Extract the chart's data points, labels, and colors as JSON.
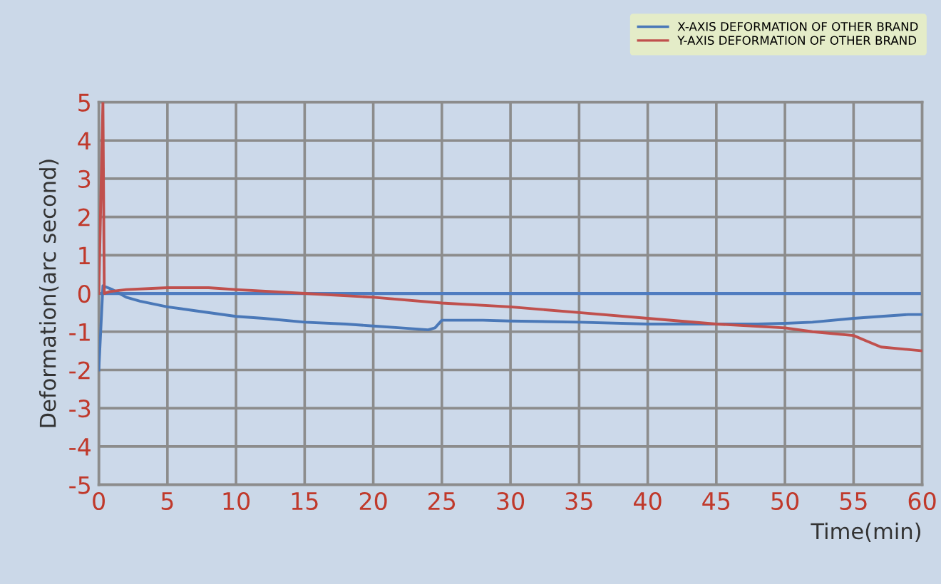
{
  "chart_data": {
    "type": "line",
    "xlabel": "Time(min)",
    "ylabel": "Deformation(arc second)",
    "xlim": [
      0,
      60
    ],
    "ylim": [
      -5,
      5
    ],
    "xticks": [
      0,
      5,
      10,
      15,
      20,
      25,
      30,
      35,
      40,
      45,
      50,
      55,
      60
    ],
    "yticks": [
      -5,
      -4,
      -3,
      -2,
      -1,
      0,
      1,
      2,
      3,
      4,
      5
    ],
    "grid": true,
    "legend": "top right",
    "ref_lines": [
      {
        "axis": "y",
        "value": 0,
        "color": "#4f7cc0"
      }
    ],
    "series": [
      {
        "name": "X-AXIS DEFORMATION OF OTHER BRAND",
        "color": "#4a78b8",
        "x": [
          0,
          0.3,
          1,
          2,
          3,
          5,
          7,
          10,
          12,
          15,
          18,
          20,
          22,
          24,
          24.5,
          25,
          28,
          30,
          35,
          40,
          45,
          48,
          50,
          52,
          55,
          57,
          59,
          60
        ],
        "values": [
          -2,
          0.2,
          0.1,
          -0.1,
          -0.2,
          -0.35,
          -0.45,
          -0.6,
          -0.65,
          -0.75,
          -0.8,
          -0.85,
          -0.9,
          -0.95,
          -0.9,
          -0.7,
          -0.7,
          -0.72,
          -0.75,
          -0.8,
          -0.8,
          -0.8,
          -0.78,
          -0.75,
          -0.65,
          -0.6,
          -0.55,
          -0.55
        ]
      },
      {
        "name": "Y-AXIS DEFORMATION OF OTHER BRAND",
        "color": "#c0504d",
        "x": [
          0,
          0.3,
          0.4,
          0.8,
          2,
          5,
          8,
          10,
          15,
          20,
          25,
          30,
          35,
          40,
          45,
          50,
          52,
          55,
          56,
          57,
          60
        ],
        "values": [
          0,
          5,
          0,
          0.05,
          0.1,
          0.15,
          0.15,
          0.1,
          0.0,
          -0.1,
          -0.25,
          -0.35,
          -0.5,
          -0.65,
          -0.8,
          -0.9,
          -1.0,
          -1.1,
          -1.25,
          -1.4,
          -1.5
        ]
      }
    ]
  }
}
